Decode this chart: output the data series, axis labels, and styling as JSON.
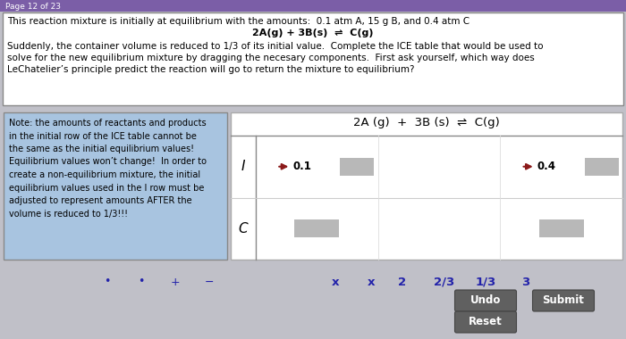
{
  "bg_color": "#c0c0c8",
  "page_tab_color": "#7b5ea7",
  "page_tab_text": "Page 12 of 23",
  "top_box_bg": "#ffffff",
  "top_box_border": "#888888",
  "top_text_line1": "This reaction mixture is initially at equilibrium with the amounts:  0.1 atm A, 15 g B, and 0.4 atm C",
  "top_text_line2": "2A(g) + 3B(s)  ⇌  C(g)",
  "top_text_line3": "Suddenly, the container volume is reduced to 1/3 of its initial value.  Complete the ICE table that would be used to",
  "top_text_line4": "solve for the new equilibrium mixture by dragging the necesary components.  First ask yourself, which way does",
  "top_text_line5": "LeChatelier’s principle predict the reaction will go to return the mixture to equilibrium?",
  "note_box_bg": "#a8c4e0",
  "note_box_border": "#888888",
  "note_text_lines": [
    "Note: the amounts of reactants and products",
    "in the initial row of the ICE table cannot be",
    "the same as the initial equilibrium values!",
    "Equilibrium values won’t change!  In order to",
    "create a non-equilibrium mixture, the initial",
    "equilibrium values used in the I row must be",
    "adjusted to represent amounts AFTER the",
    "volume is reduced to 1/3!!!"
  ],
  "ice_table_bg": "#ffffff",
  "reaction_header": "2A (g)  +  3B (s)  ⇌  C(g)",
  "row_I_label": "I",
  "row_C_label": "C",
  "arrow_color": "#8b1a1a",
  "val_01": "0.1",
  "val_04": "0.4",
  "cell_fill_color": "#b8b8b8",
  "drag_items": [
    "x",
    "x",
    "2",
    "2/3",
    "1/3",
    "3"
  ],
  "drag_item_color": "#2222aa",
  "dot_items": [
    "•",
    "•",
    "+",
    "−"
  ],
  "dot_color": "#2222aa",
  "btn_undo_bg": "#606060",
  "btn_submit_bg": "#606060",
  "btn_reset_bg": "#606060",
  "btn_text_color": "#ffffff"
}
